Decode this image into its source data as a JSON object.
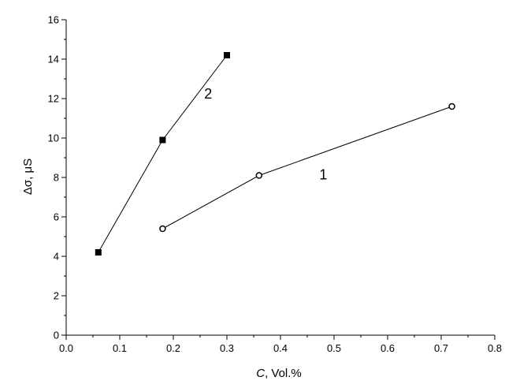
{
  "chart_data": {
    "type": "line",
    "title": "",
    "xlabel": {
      "var": "C",
      "rest": ", Vol.%"
    },
    "ylabel": {
      "symbol": "Δσ",
      "rest": ", μS"
    },
    "xlim": [
      0.0,
      0.8
    ],
    "ylim": [
      0,
      16
    ],
    "x_ticks": [
      "0.0",
      "0.1",
      "0.2",
      "0.3",
      "0.4",
      "0.5",
      "0.6",
      "0.7",
      "0.8"
    ],
    "y_ticks": [
      "0",
      "2",
      "4",
      "6",
      "8",
      "10",
      "12",
      "14",
      "16"
    ],
    "grid": false,
    "series": [
      {
        "label": "1",
        "marker": "open-circle",
        "x": [
          0.18,
          0.36,
          0.72
        ],
        "y": [
          5.4,
          8.1,
          11.6
        ],
        "label_at": [
          0.48,
          7.9
        ]
      },
      {
        "label": "2",
        "marker": "filled-square",
        "x": [
          0.06,
          0.18,
          0.3
        ],
        "y": [
          4.2,
          9.9,
          14.2
        ],
        "label_at": [
          0.265,
          12.0
        ]
      }
    ]
  }
}
